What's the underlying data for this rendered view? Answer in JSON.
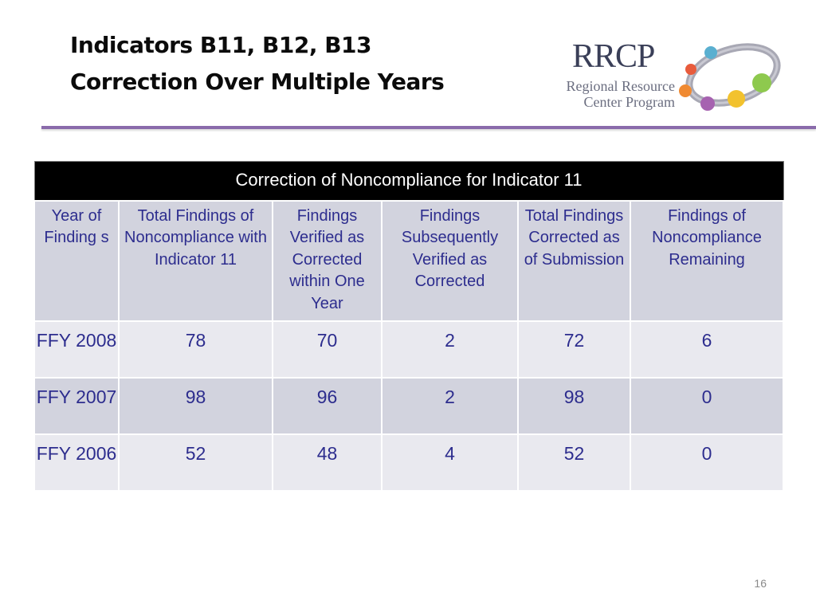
{
  "slide": {
    "title_line1": "Indicators B11, B12, B13",
    "title_line2": "Correction Over Multiple Years",
    "page_number": "16"
  },
  "logo": {
    "main": "RRCP",
    "sub_line1": "Regional Resource",
    "sub_line2": "Center Program",
    "dot_colors": [
      "#5aafd0",
      "#e85b3c",
      "#f08a32",
      "#a662b0",
      "#f2c22e",
      "#8ec94e"
    ]
  },
  "table": {
    "banner": "Correction of Noncompliance for Indicator 11",
    "headers": [
      "Year of Finding s",
      "Total Findings of Noncompliance with Indicator 11",
      "Findings Verified as Corrected within One Year",
      "Findings Subsequently Verified as Corrected",
      "Total Findings Corrected as of Submission",
      "Findings of Noncompliance Remaining"
    ],
    "rows": [
      [
        "FFY 2008",
        "78",
        "70",
        "2",
        "72",
        "6"
      ],
      [
        "FFY 2007",
        "98",
        "96",
        "2",
        "98",
        "0"
      ],
      [
        "FFY 2006",
        "52",
        "48",
        "4",
        "52",
        "0"
      ]
    ]
  },
  "colors": {
    "accent_rule": "#8a6bab",
    "header_text": "#2d2d8e",
    "row_light": "#e9e9ef",
    "row_dark": "#d2d3de"
  }
}
